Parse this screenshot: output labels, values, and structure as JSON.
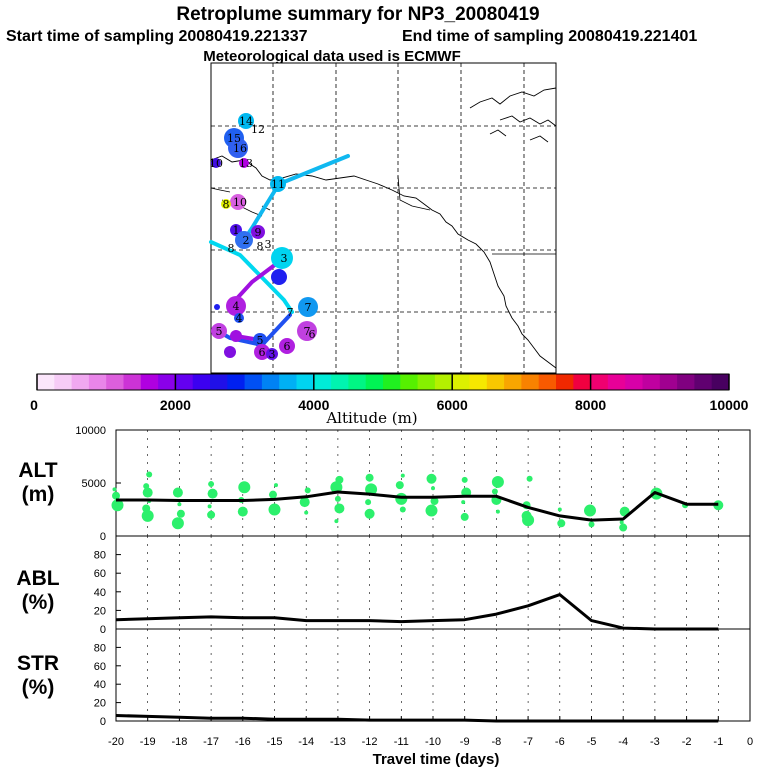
{
  "header": {
    "title": "Retroplume summary for NP3_20080419",
    "start_label": "Start time of sampling 20080419.221337",
    "end_label": "End time of sampling 20080419.221401",
    "met_label": "Meteorological data used is ECMWF"
  },
  "colorbar": {
    "label": "Altitude (m)",
    "ticks": [
      "0",
      "2000",
      "4000",
      "6000",
      "8000",
      "10000"
    ],
    "colors": [
      "#fbe6fb",
      "#f6ccf6",
      "#f0a8f0",
      "#e985e9",
      "#dd5fdd",
      "#cc33d6",
      "#b000e0",
      "#8a00ea",
      "#6400f0",
      "#3c00f0",
      "#2010e8",
      "#0020f0",
      "#0050f4",
      "#0082f4",
      "#00b0f4",
      "#00d4f0",
      "#00ecd8",
      "#00f4b0",
      "#00f684",
      "#00f454",
      "#20f020",
      "#56f000",
      "#86f000",
      "#b4f000",
      "#dcf000",
      "#f6e800",
      "#f8c800",
      "#f8a600",
      "#f88200",
      "#f85a00",
      "#f02800",
      "#f00040",
      "#f00070",
      "#e80098",
      "#d800a8",
      "#c000a0",
      "#a00090",
      "#800080",
      "#600070",
      "#480060"
    ]
  },
  "map_labels": [
    "14",
    "12",
    "15",
    "16",
    "10",
    "13",
    "11",
    "10",
    "8",
    "1",
    "9",
    "2",
    "3",
    "8",
    "8",
    "3",
    "4",
    "4",
    "5",
    "5",
    "3",
    "7",
    "7",
    "6",
    "6",
    "6",
    "7"
  ],
  "chart_data": [
    {
      "type": "line",
      "panel": "ALT",
      "ylabel": "ALT (m)",
      "title": "",
      "ylim": [
        0,
        10000
      ],
      "yticks": [
        "10000",
        "5000",
        "0"
      ],
      "x": [
        -20,
        -19,
        -18,
        -17,
        -16,
        -15,
        -14,
        -13,
        -12,
        -11,
        -10,
        -9,
        -8,
        -7,
        -6,
        -5,
        -4,
        -3,
        -2,
        -1
      ],
      "values": [
        3400,
        3400,
        3350,
        3350,
        3350,
        3450,
        3700,
        4150,
        3950,
        3650,
        3650,
        3750,
        3750,
        2700,
        1900,
        1500,
        1600,
        4100,
        3000,
        3000
      ],
      "scatter_points": [
        [
          -20,
          4400
        ],
        [
          -20,
          3800
        ],
        [
          -20,
          2900
        ],
        [
          -19,
          4700
        ],
        [
          -19,
          4100
        ],
        [
          -19,
          3300
        ],
        [
          -19,
          2600
        ],
        [
          -19,
          1900
        ],
        [
          -19,
          5800
        ],
        [
          -18,
          4100
        ],
        [
          -18,
          3000
        ],
        [
          -18,
          2100
        ],
        [
          -18,
          1200
        ],
        [
          -17,
          4900
        ],
        [
          -17,
          4000
        ],
        [
          -17,
          2800
        ],
        [
          -17,
          2000
        ],
        [
          -16,
          4600
        ],
        [
          -16,
          3400
        ],
        [
          -16,
          2300
        ],
        [
          -15,
          4800
        ],
        [
          -15,
          3900
        ],
        [
          -15,
          2500
        ],
        [
          -14,
          4300
        ],
        [
          -14,
          3200
        ],
        [
          -14,
          2200
        ],
        [
          -13,
          5300
        ],
        [
          -13,
          4600
        ],
        [
          -13,
          3500
        ],
        [
          -13,
          2600
        ],
        [
          -13,
          1400
        ],
        [
          -12,
          5500
        ],
        [
          -12,
          4400
        ],
        [
          -12,
          3200
        ],
        [
          -12,
          2100
        ],
        [
          -11,
          5700
        ],
        [
          -11,
          4800
        ],
        [
          -11,
          3500
        ],
        [
          -11,
          2500
        ],
        [
          -10,
          5400
        ],
        [
          -10,
          4500
        ],
        [
          -10,
          3300
        ],
        [
          -10,
          2400
        ],
        [
          -9,
          5300
        ],
        [
          -9,
          4100
        ],
        [
          -9,
          3200
        ],
        [
          -9,
          1800
        ],
        [
          -8,
          5100
        ],
        [
          -8,
          4200
        ],
        [
          -8,
          3400
        ],
        [
          -8,
          2300
        ],
        [
          -7,
          2900
        ],
        [
          -7,
          1500
        ],
        [
          -7,
          5400
        ],
        [
          -7,
          1900
        ],
        [
          -6,
          2500
        ],
        [
          -6,
          1200
        ],
        [
          -5,
          2400
        ],
        [
          -5,
          1100
        ],
        [
          -4,
          2300
        ],
        [
          -4,
          1300
        ],
        [
          -4,
          800
        ],
        [
          -3,
          4000
        ],
        [
          -2,
          2900
        ],
        [
          -1,
          2900
        ]
      ]
    },
    {
      "type": "line",
      "panel": "ABL",
      "ylabel": "ABL (%)",
      "title": "",
      "ylim": [
        0,
        100
      ],
      "yticks": [
        "80",
        "60",
        "40",
        "20",
        "0"
      ],
      "x": [
        -20,
        -19,
        -18,
        -17,
        -16,
        -15,
        -14,
        -13,
        -12,
        -11,
        -10,
        -9,
        -8,
        -7,
        -6,
        -5,
        -4,
        -3,
        -2,
        -1
      ],
      "values": [
        10,
        11,
        12,
        13,
        12,
        12,
        9,
        9,
        9,
        8,
        9,
        10,
        16,
        25,
        37,
        9,
        1,
        0,
        0,
        0
      ]
    },
    {
      "type": "line",
      "panel": "STR",
      "ylabel": "STR (%)",
      "title": "",
      "xlabel": "Travel time (days)",
      "ylim": [
        0,
        100
      ],
      "yticks": [
        "80",
        "60",
        "40",
        "20",
        "0"
      ],
      "xticks": [
        "-20",
        "-19",
        "-18",
        "-17",
        "-16",
        "-15",
        "-14",
        "-13",
        "-12",
        "-11",
        "-10",
        "-9",
        "-8",
        "-7",
        "-6",
        "-5",
        "-4",
        "-3",
        "-2",
        "-1",
        "0"
      ],
      "x": [
        -20,
        -19,
        -18,
        -17,
        -16,
        -15,
        -14,
        -13,
        -12,
        -11,
        -10,
        -9,
        -8,
        -7,
        -6,
        -5,
        -4,
        -3,
        -2,
        -1
      ],
      "values": [
        6,
        5,
        4,
        3,
        3,
        2,
        2,
        2,
        1,
        1,
        1,
        1,
        0,
        0,
        0,
        0,
        0,
        0,
        0,
        0
      ]
    }
  ]
}
